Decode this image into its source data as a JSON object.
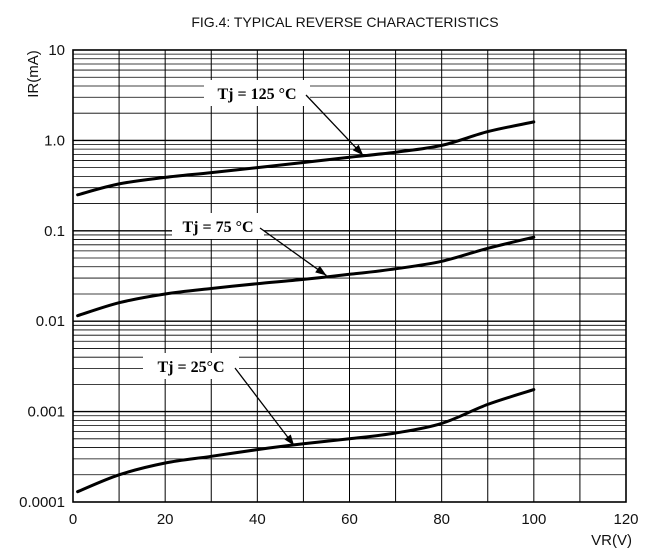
{
  "chart_data": {
    "type": "line",
    "title": "FIG.4: TYPICAL REVERSE CHARACTERISTICS",
    "xlabel": "VR(V)",
    "ylabel": "IR(mA)",
    "xlim": [
      0,
      120
    ],
    "ylim": [
      0.0001,
      10
    ],
    "yscale": "log",
    "grid": true,
    "x_ticks": [
      {
        "value": 0,
        "label": "0"
      },
      {
        "value": 20,
        "label": "20"
      },
      {
        "value": 40,
        "label": "40"
      },
      {
        "value": 60,
        "label": "60"
      },
      {
        "value": 80,
        "label": "80"
      },
      {
        "value": 100,
        "label": "100"
      },
      {
        "value": 120,
        "label": "120"
      }
    ],
    "y_ticks": [
      {
        "value": 10,
        "label": "10"
      },
      {
        "value": 1,
        "label": "1.0"
      },
      {
        "value": 0.1,
        "label": "0.1"
      },
      {
        "value": 0.01,
        "label": "0.01"
      },
      {
        "value": 0.001,
        "label": "0.001"
      },
      {
        "value": 0.0001,
        "label": "0.0001"
      }
    ],
    "series": [
      {
        "name": "Tj = 125 °C",
        "x": [
          1,
          10,
          20,
          30,
          40,
          50,
          60,
          70,
          80,
          90,
          100
        ],
        "y": [
          0.25,
          0.33,
          0.39,
          0.44,
          0.5,
          0.57,
          0.65,
          0.74,
          0.88,
          1.25,
          1.6
        ]
      },
      {
        "name": "Tj = 75 °C",
        "x": [
          1,
          10,
          20,
          30,
          40,
          50,
          60,
          70,
          80,
          90,
          100
        ],
        "y": [
          0.0115,
          0.016,
          0.02,
          0.023,
          0.026,
          0.029,
          0.033,
          0.038,
          0.046,
          0.064,
          0.085
        ]
      },
      {
        "name": "Tj = 25°C",
        "x": [
          1,
          10,
          20,
          30,
          40,
          50,
          60,
          70,
          80,
          90,
          100
        ],
        "y": [
          0.00013,
          0.0002,
          0.00027,
          0.00032,
          0.00038,
          0.00044,
          0.0005,
          0.00058,
          0.00074,
          0.0012,
          0.00175
        ]
      }
    ],
    "annotations": [
      {
        "text": "Tj = 125 °C",
        "arrow_to": {
          "x": 63,
          "y": 0.68
        }
      },
      {
        "text": "Tj = 75 °C",
        "arrow_to": {
          "x": 55,
          "y": 0.032
        }
      },
      {
        "text": "Tj = 25°C",
        "arrow_to": {
          "x": 48,
          "y": 0.00042
        }
      }
    ],
    "line_color": "#000000",
    "grid_color": "#000000"
  }
}
